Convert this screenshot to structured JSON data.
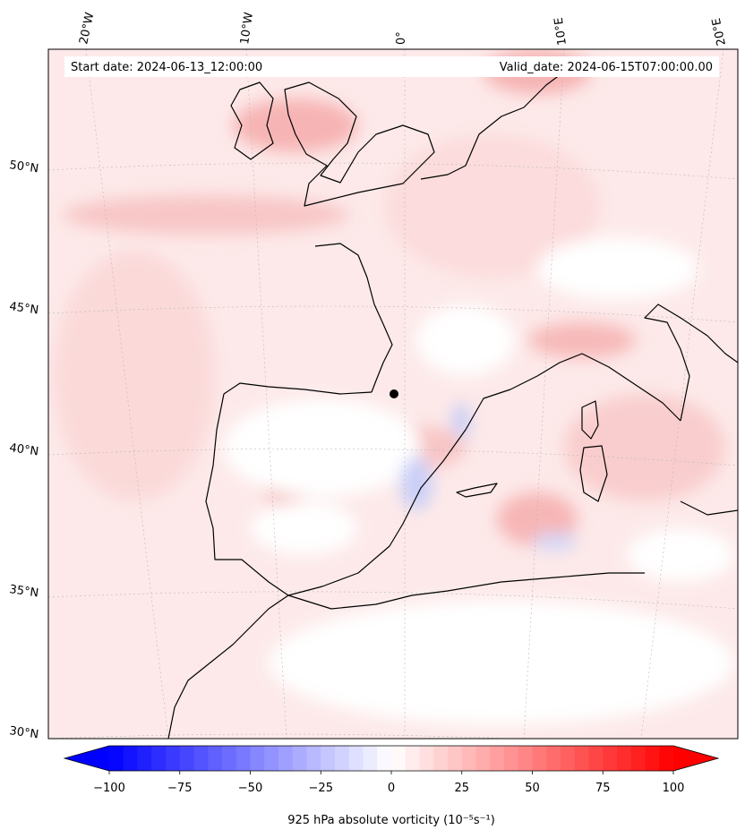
{
  "header": {
    "start_date": "Start date: 2024-06-13_12:00:00",
    "valid_date": "Valid_date: 2024-06-15T07:00:00.00"
  },
  "lon_labels": [
    "20°W",
    "10°W",
    "0°",
    "10°E",
    "20°E"
  ],
  "lat_labels": [
    "50°N",
    "45°N",
    "40°N",
    "35°N",
    "30°N"
  ],
  "colorbar": {
    "ticks": [
      "−100",
      "−75",
      "−50",
      "−25",
      "0",
      "25",
      "50",
      "75",
      "100"
    ],
    "min": -100,
    "max": 100,
    "levels": 40,
    "label": "925 hPa absolute vorticity (10⁻⁵s⁻¹)"
  },
  "colors": {
    "negative": "#0000ff",
    "positive": "#ff0000",
    "coast": "#000000"
  }
}
